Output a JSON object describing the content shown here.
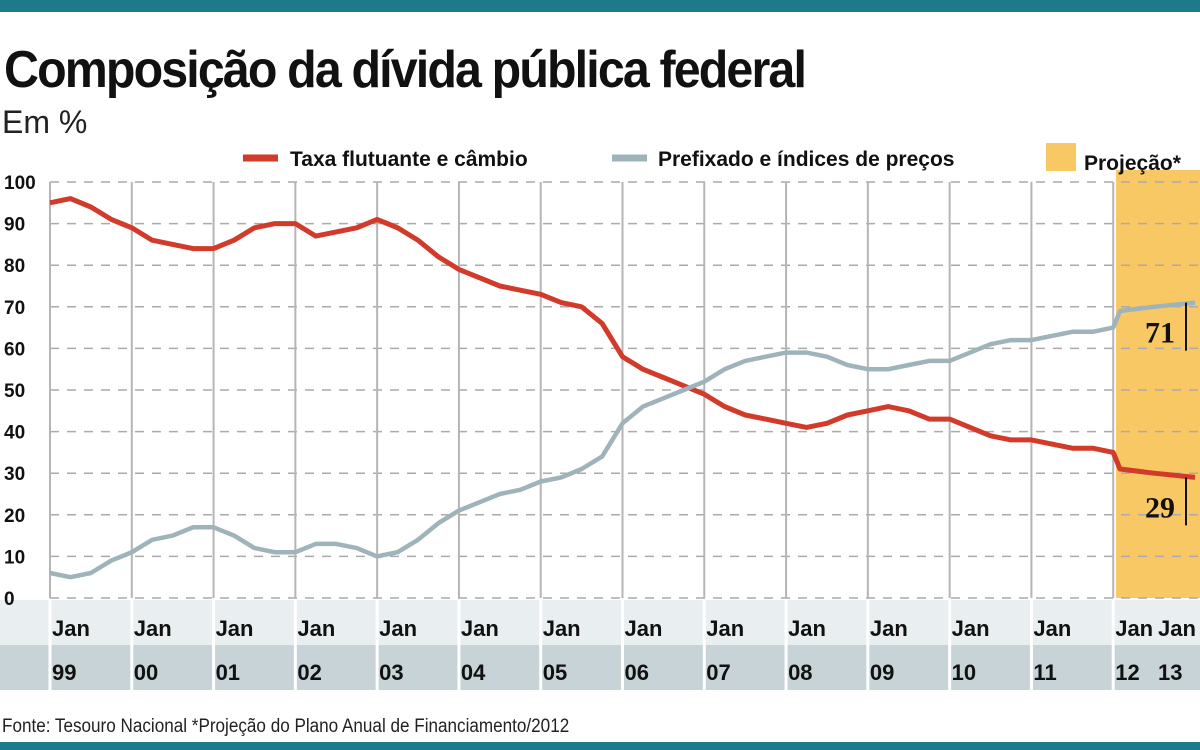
{
  "chart_data": {
    "type": "line",
    "title": "Composição da dívida pública federal",
    "subtitle": "Em %",
    "source": "Fonte: Tesouro Nacional  *Projeção do Plano Anual de Financiamento/2012",
    "ylim": [
      0,
      100
    ],
    "yticks": [
      0,
      10,
      20,
      30,
      40,
      50,
      60,
      70,
      80,
      90,
      100
    ],
    "xlim": [
      "1999-01",
      "2013-01"
    ],
    "x_month_labels": [
      "Jan",
      "Jan",
      "Jan",
      "Jan",
      "Jan",
      "Jan",
      "Jan",
      "Jan",
      "Jan",
      "Jan",
      "Jan",
      "Jan",
      "Jan",
      "Jan",
      "Jan"
    ],
    "x_year_labels": [
      "99",
      "00",
      "01",
      "02",
      "03",
      "04",
      "05",
      "06",
      "07",
      "08",
      "09",
      "10",
      "11",
      "12",
      "13"
    ],
    "grid": true,
    "legend_placement": "top",
    "projection": {
      "label": "Projeção*",
      "start": "2012-02",
      "end": "2013-01",
      "color": "#f8c865"
    },
    "x": [
      "1999-01",
      "1999-04",
      "1999-07",
      "1999-10",
      "2000-01",
      "2000-04",
      "2000-07",
      "2000-10",
      "2001-01",
      "2001-04",
      "2001-07",
      "2001-10",
      "2002-01",
      "2002-04",
      "2002-07",
      "2002-10",
      "2003-01",
      "2003-04",
      "2003-07",
      "2003-10",
      "2004-01",
      "2004-04",
      "2004-07",
      "2004-10",
      "2005-01",
      "2005-04",
      "2005-07",
      "2005-10",
      "2006-01",
      "2006-04",
      "2006-07",
      "2006-10",
      "2007-01",
      "2007-04",
      "2007-07",
      "2007-10",
      "2008-01",
      "2008-04",
      "2008-07",
      "2008-10",
      "2009-01",
      "2009-04",
      "2009-07",
      "2009-10",
      "2010-01",
      "2010-04",
      "2010-07",
      "2010-10",
      "2011-01",
      "2011-04",
      "2011-07",
      "2011-10",
      "2012-01",
      "2012-02",
      "2012-07",
      "2013-01"
    ],
    "series": [
      {
        "name": "Taxa flutuante e câmbio",
        "color": "#d23a2a",
        "end_label": "29",
        "values": [
          95,
          96,
          94,
          91,
          89,
          86,
          85,
          84,
          84,
          86,
          89,
          90,
          90,
          87,
          88,
          89,
          91,
          89,
          86,
          82,
          79,
          77,
          75,
          74,
          73,
          71,
          70,
          66,
          58,
          55,
          53,
          51,
          49,
          46,
          44,
          43,
          42,
          41,
          42,
          44,
          45,
          46,
          45,
          43,
          43,
          41,
          39,
          38,
          38,
          37,
          36,
          36,
          35,
          31,
          30,
          29
        ]
      },
      {
        "name": "Prefixado e índices de preços",
        "color": "#9fb4ba",
        "end_label": "71",
        "values": [
          6,
          5,
          6,
          9,
          11,
          14,
          15,
          17,
          17,
          15,
          12,
          11,
          11,
          13,
          13,
          12,
          10,
          11,
          14,
          18,
          21,
          23,
          25,
          26,
          28,
          29,
          31,
          34,
          42,
          46,
          48,
          50,
          52,
          55,
          57,
          58,
          59,
          59,
          58,
          56,
          55,
          55,
          56,
          57,
          57,
          59,
          61,
          62,
          62,
          63,
          64,
          64,
          65,
          69,
          70,
          71
        ]
      }
    ]
  }
}
